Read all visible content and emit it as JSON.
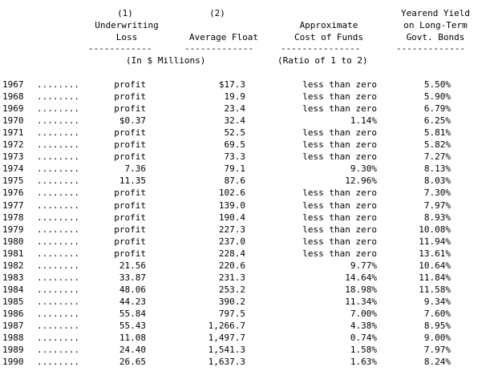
{
  "header": {
    "row1": {
      "col1": "(1)",
      "col2": "(2)",
      "col4": "Yearend Yield"
    },
    "row2": {
      "col1": "Underwriting",
      "col3": "Approximate",
      "col4": "on Long-Term"
    },
    "row3": {
      "col1": "Loss",
      "col2": "Average Float",
      "col3": "Cost of Funds",
      "col4": "Govt. Bonds"
    },
    "rules": {
      "col1": "------------",
      "col2": "-------------",
      "col3": "---------------",
      "col4": "-------------"
    },
    "units_left": "(In $ Millions)",
    "units_right": "(Ratio of 1 to 2)"
  },
  "leader": "........",
  "rows": [
    {
      "year": "1967",
      "loss": "profit",
      "float": "$17.3",
      "cost": "less than zero",
      "yield": "5.50%"
    },
    {
      "year": "1968",
      "loss": "profit",
      "float": "19.9",
      "cost": "less than zero",
      "yield": "5.90%"
    },
    {
      "year": "1969",
      "loss": "profit",
      "float": "23.4",
      "cost": "less than zero",
      "yield": "6.79%"
    },
    {
      "year": "1970",
      "loss": "$0.37",
      "float": "32.4",
      "cost": "1.14%",
      "yield": "6.25%"
    },
    {
      "year": "1971",
      "loss": "profit",
      "float": "52.5",
      "cost": "less than zero",
      "yield": "5.81%"
    },
    {
      "year": "1972",
      "loss": "profit",
      "float": "69.5",
      "cost": "less than zero",
      "yield": "5.82%"
    },
    {
      "year": "1973",
      "loss": "profit",
      "float": "73.3",
      "cost": "less than zero",
      "yield": "7.27%"
    },
    {
      "year": "1974",
      "loss": "7.36",
      "float": "79.1",
      "cost": "9.30%",
      "yield": "8.13%"
    },
    {
      "year": "1975",
      "loss": "11.35",
      "float": "87.6",
      "cost": "12.96%",
      "yield": "8.03%"
    },
    {
      "year": "1976",
      "loss": "profit",
      "float": "102.6",
      "cost": "less than zero",
      "yield": "7.30%"
    },
    {
      "year": "1977",
      "loss": "profit",
      "float": "139.0",
      "cost": "less than zero",
      "yield": "7.97%"
    },
    {
      "year": "1978",
      "loss": "profit",
      "float": "190.4",
      "cost": "less than zero",
      "yield": "8.93%"
    },
    {
      "year": "1979",
      "loss": "profit",
      "float": "227.3",
      "cost": "less than zero",
      "yield": "10.08%"
    },
    {
      "year": "1980",
      "loss": "profit",
      "float": "237.0",
      "cost": "less than zero",
      "yield": "11.94%"
    },
    {
      "year": "1981",
      "loss": "profit",
      "float": "228.4",
      "cost": "less than zero",
      "yield": "13.61%"
    },
    {
      "year": "1982",
      "loss": "21.56",
      "float": "220.6",
      "cost": "9.77%",
      "yield": "10.64%"
    },
    {
      "year": "1983",
      "loss": "33.87",
      "float": "231.3",
      "cost": "14.64%",
      "yield": "11.84%"
    },
    {
      "year": "1984",
      "loss": "48.06",
      "float": "253.2",
      "cost": "18.98%",
      "yield": "11.58%"
    },
    {
      "year": "1985",
      "loss": "44.23",
      "float": "390.2",
      "cost": "11.34%",
      "yield": "9.34%"
    },
    {
      "year": "1986",
      "loss": "55.84",
      "float": "797.5",
      "cost": "7.00%",
      "yield": "7.60%"
    },
    {
      "year": "1987",
      "loss": "55.43",
      "float": "1,266.7",
      "cost": "4.38%",
      "yield": "8.95%"
    },
    {
      "year": "1988",
      "loss": "11.08",
      "float": "1,497.7",
      "cost": "0.74%",
      "yield": "9.00%"
    },
    {
      "year": "1989",
      "loss": "24.40",
      "float": "1,541.3",
      "cost": "1.58%",
      "yield": "7.97%"
    },
    {
      "year": "1990",
      "loss": "26.65",
      "float": "1,637.3",
      "cost": "1.63%",
      "yield": "8.24%"
    }
  ]
}
